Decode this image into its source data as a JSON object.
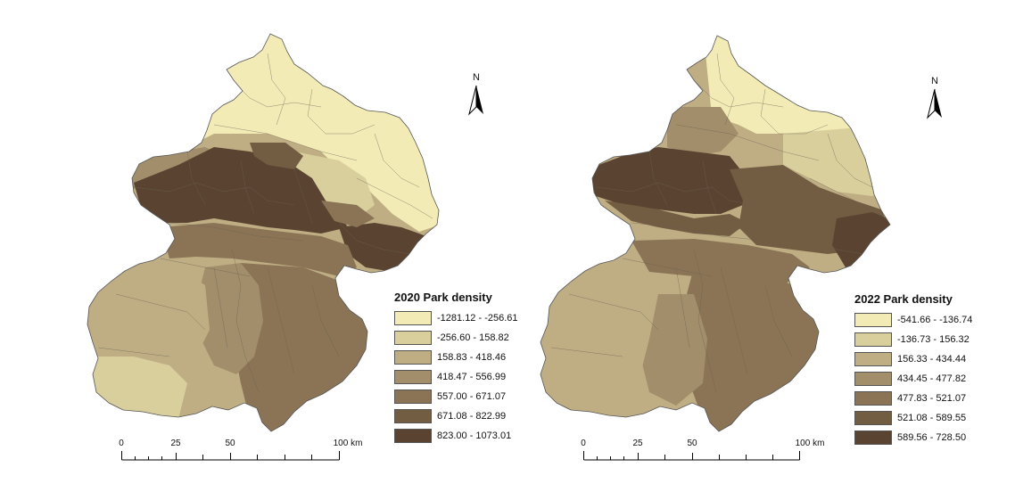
{
  "maps": [
    {
      "id": "2020",
      "legend": {
        "title": "2020 Park density",
        "classes": [
          {
            "label": "-1281.12 - -256.61",
            "color": "#f2ebb6"
          },
          {
            "label": "-256.60 - 158.82",
            "color": "#d9cf9d"
          },
          {
            "label": "158.83 - 418.46",
            "color": "#bfae84"
          },
          {
            "label": "418.47 - 556.99",
            "color": "#a28e6b"
          },
          {
            "label": "557.00 - 671.07",
            "color": "#8a7455"
          },
          {
            "label": "671.08 - 822.99",
            "color": "#725c42"
          },
          {
            "label": "823.00 - 1073.01",
            "color": "#5a4431"
          }
        ]
      },
      "north_arrow": "N",
      "scale_bar": {
        "labels": [
          "0",
          "25",
          "50",
          "100 km"
        ]
      }
    },
    {
      "id": "2022",
      "legend": {
        "title": "2022 Park density",
        "classes": [
          {
            "label": "-541.66 - -136.74",
            "color": "#f2ebb6"
          },
          {
            "label": "-136.73 - 156.32",
            "color": "#d9cf9d"
          },
          {
            "label": "156.33 - 434.44",
            "color": "#bfae84"
          },
          {
            "label": "434.45 - 477.82",
            "color": "#a28e6b"
          },
          {
            "label": "477.83 - 521.07",
            "color": "#8a7455"
          },
          {
            "label": "521.08 - 589.55",
            "color": "#725c42"
          },
          {
            "label": "589.56 - 728.50",
            "color": "#5a4431"
          }
        ]
      },
      "north_arrow": "N",
      "scale_bar": {
        "labels": [
          "0",
          "25",
          "50",
          "100 km"
        ]
      }
    }
  ]
}
